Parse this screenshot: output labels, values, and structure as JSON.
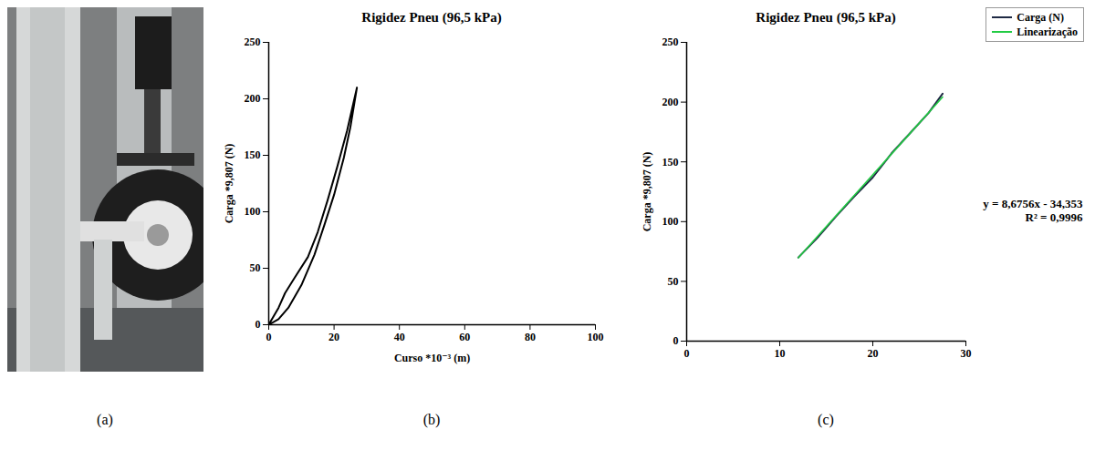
{
  "photo": {
    "panel": "(a)"
  },
  "chart_data": [
    {
      "type": "line",
      "panel": "(b)",
      "title": "Rigidez Pneu (96,5 kPa)",
      "x_label": "Curso *10⁻³ (m)",
      "y_label": "Carga *9,807 (N)",
      "series": [
        {
          "color": "#000000",
          "x": [
            0,
            3,
            5,
            8,
            12,
            15,
            18,
            21,
            24,
            27,
            25,
            23,
            20,
            17,
            14,
            10,
            6,
            3,
            0
          ],
          "values": [
            0,
            15,
            28,
            42,
            60,
            82,
            110,
            140,
            172,
            210,
            175,
            148,
            115,
            88,
            62,
            35,
            15,
            5,
            0
          ]
        }
      ],
      "xlim": [
        0,
        100
      ],
      "xticks": [
        0,
        20,
        40,
        60,
        80,
        100
      ],
      "ylim": [
        0,
        250
      ],
      "yticks": [
        0,
        50,
        100,
        150,
        200,
        250
      ]
    },
    {
      "type": "line",
      "panel": "(c)",
      "title": "Rigidez Pneu (96,5 kPa)",
      "y_label": "Carga *9,807 (N)",
      "series": [
        {
          "name": "Carga (N)",
          "color": "#1f2a44",
          "x": [
            12,
            14,
            16,
            18,
            20,
            22,
            24,
            26,
            27.5
          ],
          "values": [
            70,
            86,
            104,
            121,
            137,
            157,
            174,
            191,
            207
          ]
        },
        {
          "name": "Linearização",
          "color": "#22cc44",
          "x": [
            12,
            27.5
          ],
          "values": [
            69.8,
            204.2
          ]
        }
      ],
      "annotations": [
        "y = 8,6756x - 34,353",
        "R² = 0,9996"
      ],
      "legend": "top-right",
      "xlim": [
        0,
        30
      ],
      "xticks": [
        0,
        10,
        20,
        30
      ],
      "ylim": [
        0,
        250
      ],
      "yticks": [
        0,
        50,
        100,
        150,
        200,
        250
      ]
    }
  ]
}
